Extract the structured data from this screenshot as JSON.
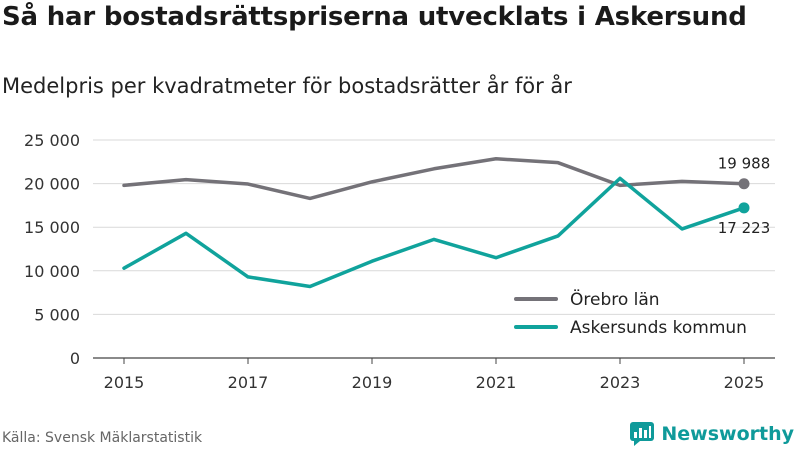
{
  "header": {
    "title": "Så har bostadsrättspriserna utvecklats i Askersund",
    "subtitle": "Medelpris per kvadratmeter för bostadsrätter år för år"
  },
  "footer": {
    "source": "Källa: Svensk Mäklarstatistik",
    "brand": "Newsworthy"
  },
  "colors": {
    "orebro": "#747278",
    "askersund": "#10a39c",
    "grid": "#d9d9d9",
    "brand": "#0f9a9a"
  },
  "chart_data": {
    "type": "line",
    "x": [
      2015,
      2016,
      2017,
      2018,
      2019,
      2020,
      2021,
      2022,
      2023,
      2024,
      2025
    ],
    "x_tick_labels": [
      "2015",
      "2017",
      "2019",
      "2021",
      "2023",
      "2025"
    ],
    "x_ticks": [
      2015,
      2017,
      2019,
      2021,
      2023,
      2025
    ],
    "y_tick_labels": [
      "0",
      "5 000",
      "10 000",
      "15 000",
      "20 000",
      "25 000"
    ],
    "y_ticks": [
      0,
      5000,
      10000,
      15000,
      20000,
      25000
    ],
    "ylim": [
      0,
      25000
    ],
    "xlim": [
      2014.5,
      2025.5
    ],
    "grid": true,
    "legend_position": "bottom-right",
    "series": [
      {
        "name": "Örebro län",
        "key": "orebro",
        "values": [
          19800,
          20450,
          19950,
          18300,
          20200,
          21700,
          22850,
          22400,
          19800,
          20250,
          19988
        ],
        "end_label": "19 988",
        "end_label_position": "above"
      },
      {
        "name": "Askersunds kommun",
        "key": "askersund",
        "values": [
          10300,
          14300,
          9300,
          8200,
          11100,
          13600,
          11500,
          14000,
          20600,
          14800,
          17223
        ],
        "end_label": "17 223",
        "end_label_position": "below"
      }
    ]
  }
}
